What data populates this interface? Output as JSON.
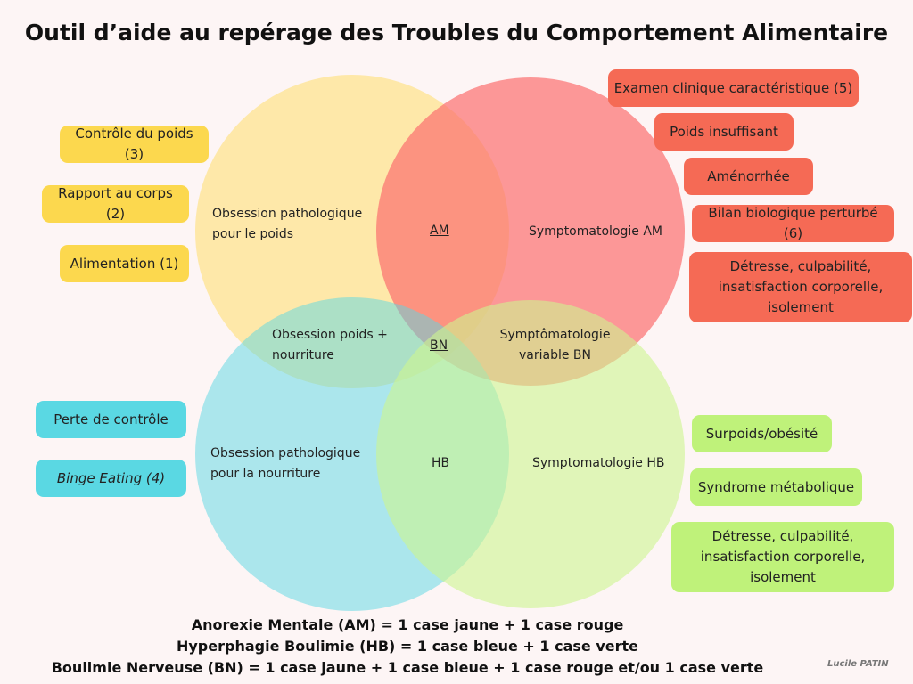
{
  "title": "Outil d’aide au repérage des Troubles du Comportement Alimentaire",
  "colors": {
    "yellow": "#fcd84e",
    "red": "#f56a55",
    "blue": "#5ad8e3",
    "green": "#bff27a",
    "background": "#fdf5f5"
  },
  "yellow_boxes": [
    "Contrôle du poids (3)",
    "Rapport au corps (2)",
    "Alimentation (1)"
  ],
  "red_boxes": [
    "Examen clinique caractéristique (5)",
    "Poids insuffisant",
    "Aménorrhée",
    "Bilan biologique perturbé (6)",
    "Détresse, culpabilité, insatisfaction corporelle, isolement"
  ],
  "blue_boxes": [
    "Perte de contrôle",
    "Binge Eating (4)"
  ],
  "green_boxes": [
    "Surpoids/obésité",
    "Syndrome métabolique",
    "Détresse, culpabilité, insatisfaction corporelle, isolement"
  ],
  "venn": {
    "yellow": "Obsession pathologique pour le poids",
    "red": "Symptomatologie AM",
    "blue": "Obsession pathologique pour la nourriture",
    "green": "Symptomatologie HB",
    "yellow_red": "AM",
    "yellow_blue": "Obsession poids + nourriture",
    "center": "BN",
    "red_green": "Symptômatologie variable BN",
    "blue_green": "HB"
  },
  "legend": [
    "Anorexie Mentale (AM) = 1 case jaune + 1 case rouge",
    "Hyperphagie Boulimie (HB) = 1 case bleue + 1 case verte",
    "Boulimie Nerveuse (BN) = 1 case jaune + 1 case bleue + 1 case rouge et/ou 1 case verte"
  ],
  "signature": "Lucile PATIN"
}
